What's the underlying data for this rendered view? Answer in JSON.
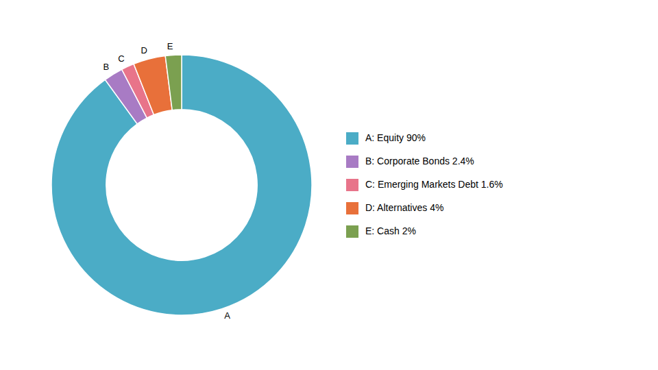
{
  "chart_data": {
    "type": "pie",
    "categories": [
      "A",
      "B",
      "C",
      "D",
      "E"
    ],
    "values": [
      90,
      2.4,
      1.6,
      4,
      2
    ],
    "colors": [
      "#4BACC6",
      "#A87BC4",
      "#E8748A",
      "#E8703A",
      "#7BA050"
    ],
    "legend_labels": [
      "A: Equity 90%",
      "B: Corporate Bonds 2.4%",
      "C: Emerging Markets Debt 1.6%",
      "D: Alternatives 4%",
      "E: Cash 2%"
    ],
    "legend": "right"
  }
}
